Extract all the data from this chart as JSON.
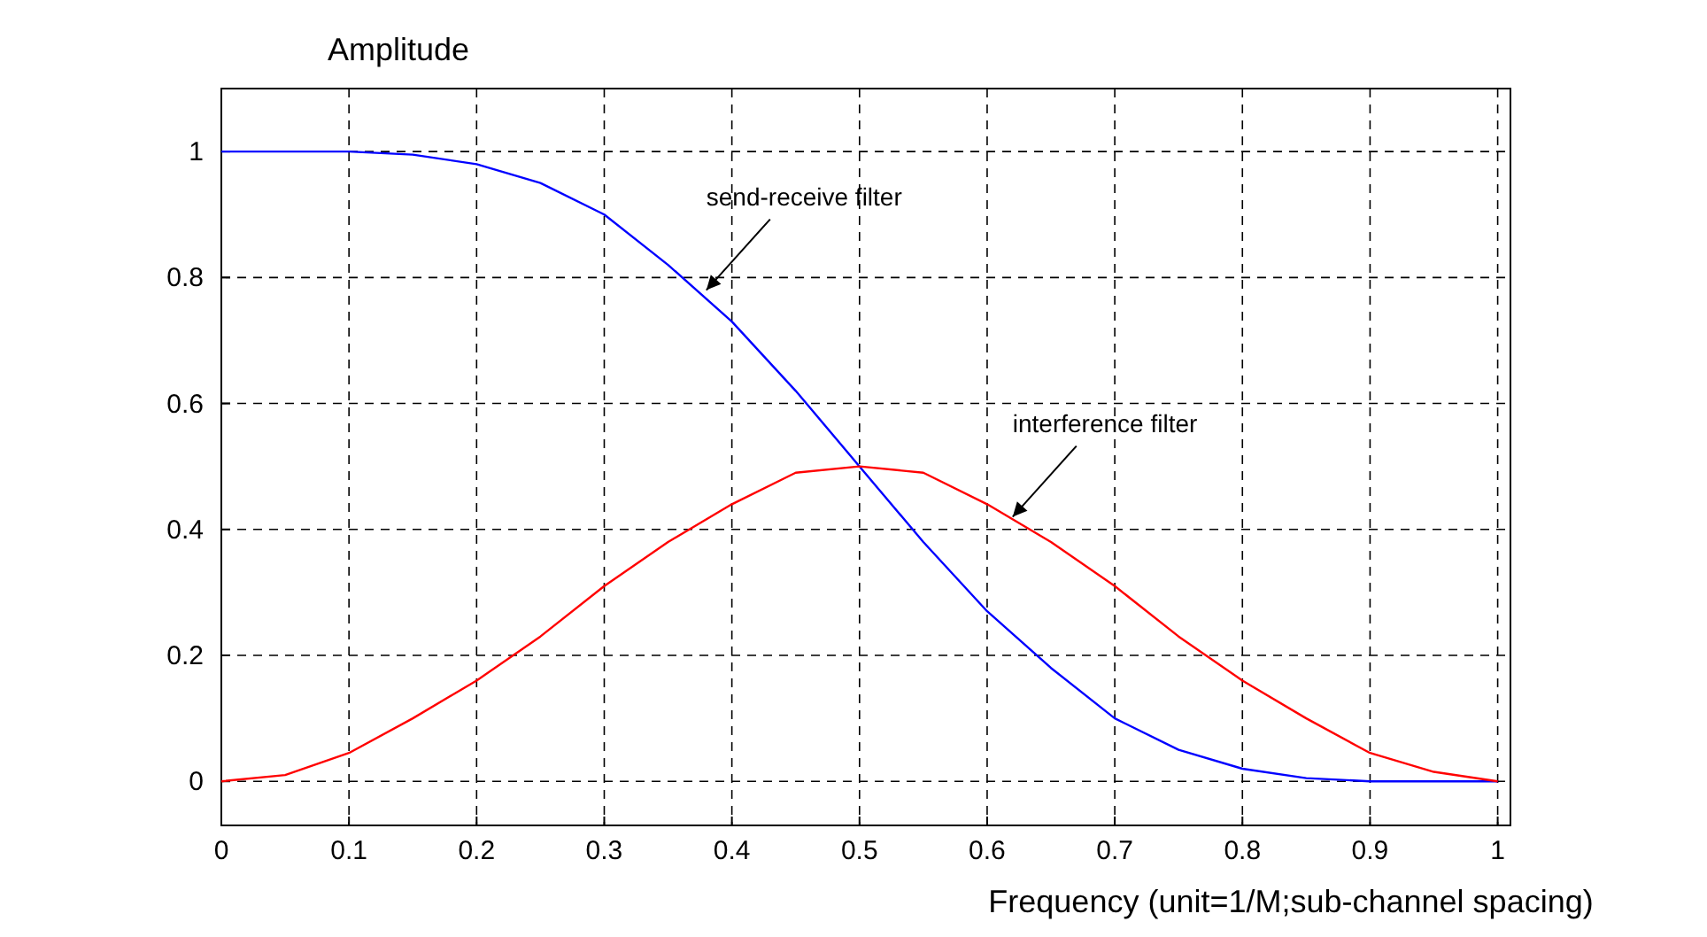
{
  "chart_data": {
    "type": "line",
    "ylabel": "Amplitude",
    "xlabel": "Frequency (unit=1/M;sub-channel spacing)",
    "x": [
      0,
      0.05,
      0.1,
      0.15,
      0.2,
      0.25,
      0.3,
      0.35,
      0.4,
      0.45,
      0.5,
      0.55,
      0.6,
      0.65,
      0.7,
      0.75,
      0.8,
      0.85,
      0.9,
      0.95,
      1
    ],
    "series": [
      {
        "color": "#0000ff",
        "values": [
          1,
          1,
          1,
          0.995,
          0.98,
          0.95,
          0.9,
          0.82,
          0.73,
          0.62,
          0.5,
          0.38,
          0.27,
          0.18,
          0.1,
          0.05,
          0.02,
          0.005,
          0,
          0,
          0
        ]
      },
      {
        "color": "#ff0000",
        "values": [
          0,
          0.01,
          0.045,
          0.1,
          0.16,
          0.23,
          0.31,
          0.38,
          0.44,
          0.49,
          0.5,
          0.49,
          0.44,
          0.38,
          0.31,
          0.23,
          0.16,
          0.1,
          0.045,
          0.015,
          0
        ]
      }
    ],
    "xlim": [
      0,
      1.01
    ],
    "xticks": [
      0,
      0.1,
      0.2,
      0.3,
      0.4,
      0.5,
      0.6,
      0.7,
      0.8,
      0.9,
      1
    ],
    "ylim": [
      -0.07,
      1.1
    ],
    "yticks": [
      0,
      0.2,
      0.4,
      0.6,
      0.8,
      1
    ],
    "grid": true,
    "line_style": "solid",
    "annotations": [
      {
        "text": "send-receive filter",
        "x": 0.38,
        "y": 0.78
      },
      {
        "text": "interference filter",
        "x": 0.62,
        "y": 0.42
      }
    ]
  }
}
